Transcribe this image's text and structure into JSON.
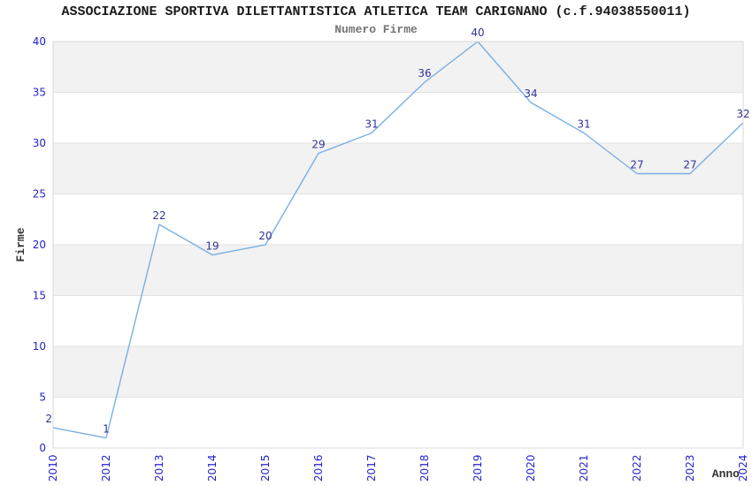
{
  "chart_data": {
    "type": "line",
    "title": "ASSOCIAZIONE SPORTIVA DILETTANTISTICA ATLETICA TEAM CARIGNANO (c.f.94038550011)",
    "subtitle": "Numero Firme",
    "xlabel": "Anno",
    "ylabel": "Firme",
    "categories": [
      "2010",
      "2012",
      "2013",
      "2014",
      "2015",
      "2016",
      "2017",
      "2018",
      "2019",
      "2020",
      "2021",
      "2022",
      "2023",
      "2024"
    ],
    "values": [
      2,
      1,
      22,
      19,
      20,
      29,
      31,
      36,
      40,
      34,
      31,
      27,
      27,
      32
    ],
    "ylim": [
      0,
      40
    ],
    "ytick_step": 5,
    "grid": "horizontal-bands-alternating",
    "legend": "none",
    "markers": "none",
    "colors": {
      "line": "#7aafe5",
      "point_labels": "#333399",
      "tick_labels": "#2323cc",
      "band_gray": "#f2f2f2",
      "band_white": "#ffffff",
      "plot_border": "#d9d9d9",
      "gridline": "#e3e3e3",
      "title": "#1a1a1a",
      "subtitle": "#747474",
      "axis_label": "#333333"
    }
  }
}
